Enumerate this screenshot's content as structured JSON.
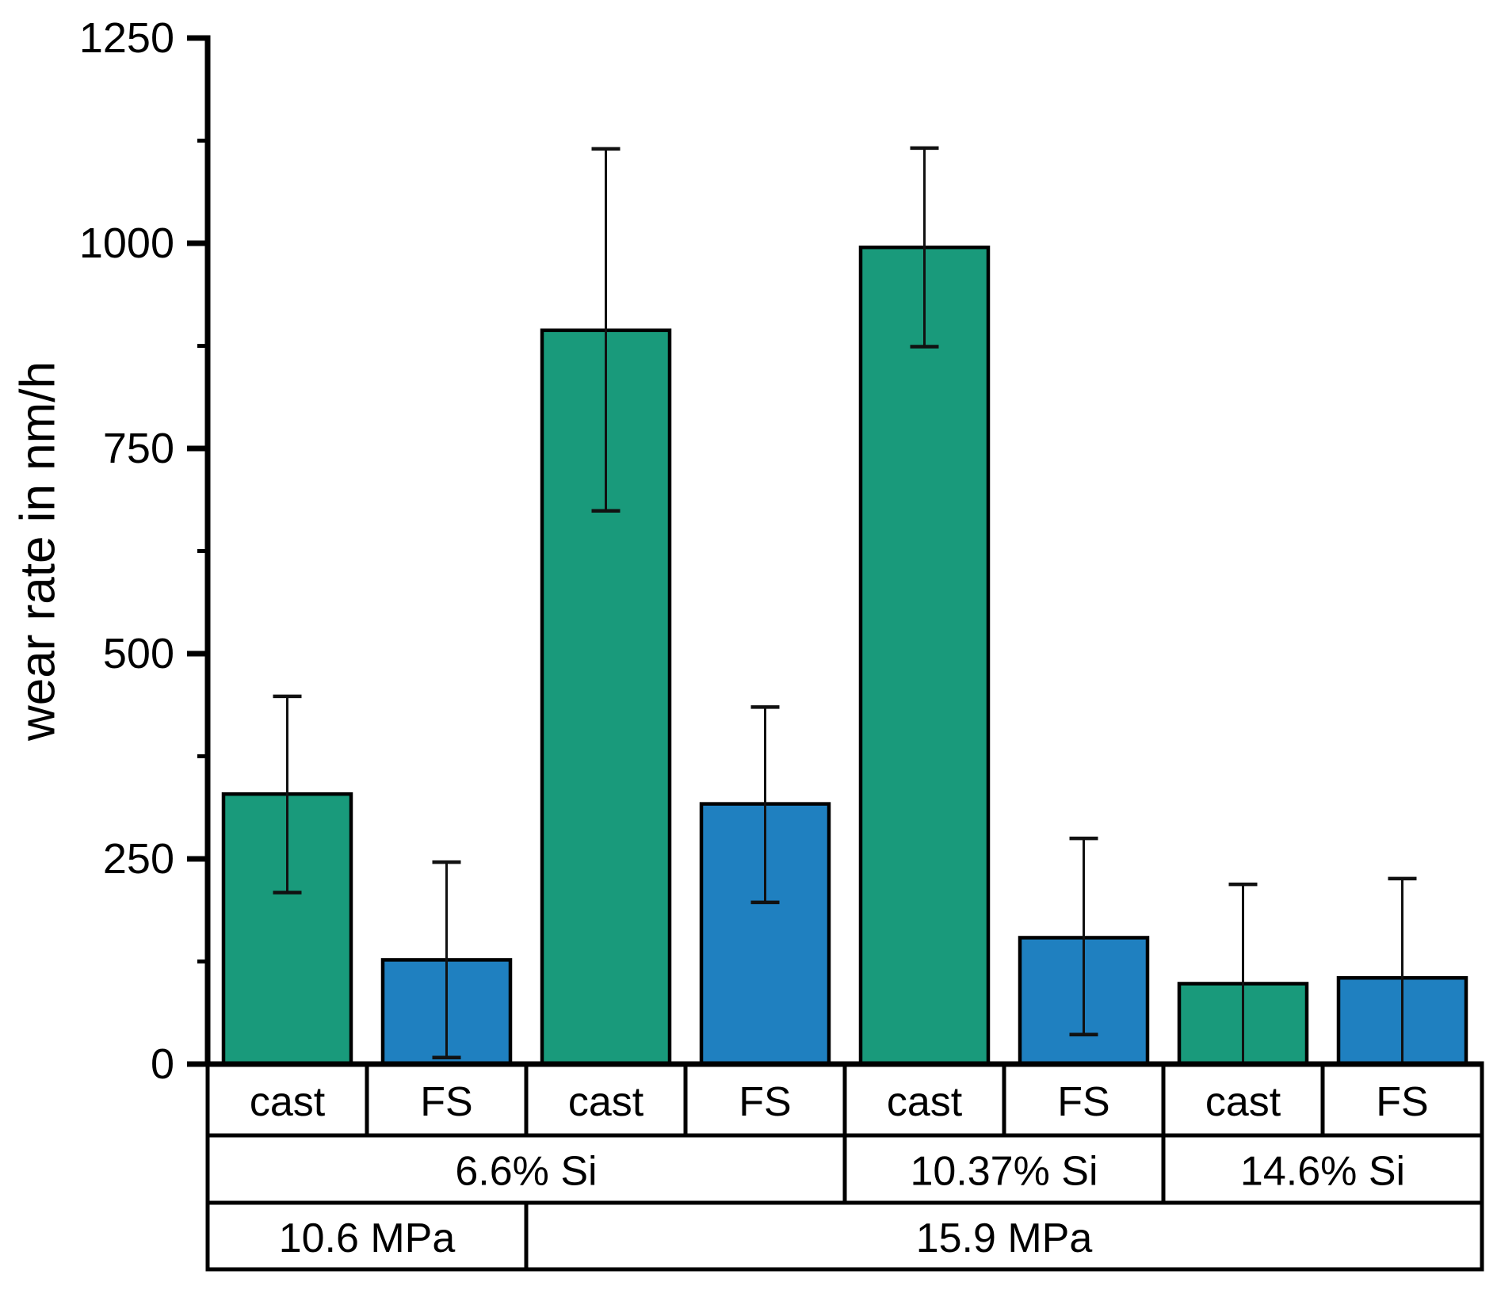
{
  "figure": {
    "background": "#ffffff",
    "description": "Grouped bar chart of wear rate for cast vs friction-stir (FS) processed Al-Si alloys at different Si contents and contact pressures, with error bars"
  },
  "chart_data": {
    "type": "bar",
    "title": "",
    "xlabel": "",
    "ylabel": "wear rate in nm/h",
    "ylim": [
      0,
      1250
    ],
    "yticks": [
      0,
      250,
      500,
      750,
      1000,
      1250
    ],
    "y_minor_step": 125,
    "grid": false,
    "legend": null,
    "colors": {
      "cast": "#199a7b",
      "FS": "#1f80c0",
      "bar_outline": "#000000",
      "error_bar": "#111111",
      "axis": "#000000",
      "table_border": "#000000",
      "text": "#000000"
    },
    "bars": [
      {
        "process": "cast",
        "silicon": "6.6% Si",
        "pressure": "10.6 MPa",
        "value": 329,
        "err_plus": 119,
        "err_minus": 120
      },
      {
        "process": "FS",
        "silicon": "6.6% Si",
        "pressure": "10.6 MPa",
        "value": 127,
        "err_plus": 119,
        "err_minus": 119
      },
      {
        "process": "cast",
        "silicon": "6.6% Si",
        "pressure": "15.9 MPa",
        "value": 894,
        "err_plus": 221,
        "err_minus": 220
      },
      {
        "process": "FS",
        "silicon": "6.6% Si",
        "pressure": "15.9 MPa",
        "value": 317,
        "err_plus": 118,
        "err_minus": 120
      },
      {
        "process": "cast",
        "silicon": "10.37% Si",
        "pressure": "15.9 MPa",
        "value": 995,
        "err_plus": 121,
        "err_minus": 121
      },
      {
        "process": "FS",
        "silicon": "10.37% Si",
        "pressure": "15.9 MPa",
        "value": 154,
        "err_plus": 121,
        "err_minus": 118
      },
      {
        "process": "cast",
        "silicon": "14.6% Si",
        "pressure": "15.9 MPa",
        "value": 98,
        "err_plus": 121,
        "err_minus": 121
      },
      {
        "process": "FS",
        "silicon": "14.6% Si",
        "pressure": "15.9 MPa",
        "value": 105,
        "err_plus": 121,
        "err_minus": 121
      }
    ],
    "category_rows": [
      {
        "name": "process",
        "cells": [
          {
            "label": "cast",
            "span": 1
          },
          {
            "label": "FS",
            "span": 1
          },
          {
            "label": "cast",
            "span": 1
          },
          {
            "label": "FS",
            "span": 1
          },
          {
            "label": "cast",
            "span": 1
          },
          {
            "label": "FS",
            "span": 1
          },
          {
            "label": "cast",
            "span": 1
          },
          {
            "label": "FS",
            "span": 1
          }
        ]
      },
      {
        "name": "silicon",
        "cells": [
          {
            "label": "6.6% Si",
            "span": 4
          },
          {
            "label": "10.37% Si",
            "span": 2
          },
          {
            "label": "14.6% Si",
            "span": 2
          }
        ]
      },
      {
        "name": "pressure",
        "cells": [
          {
            "label": "10.6 MPa",
            "span": 2
          },
          {
            "label": "15.9 MPa",
            "span": 6
          }
        ]
      }
    ]
  }
}
